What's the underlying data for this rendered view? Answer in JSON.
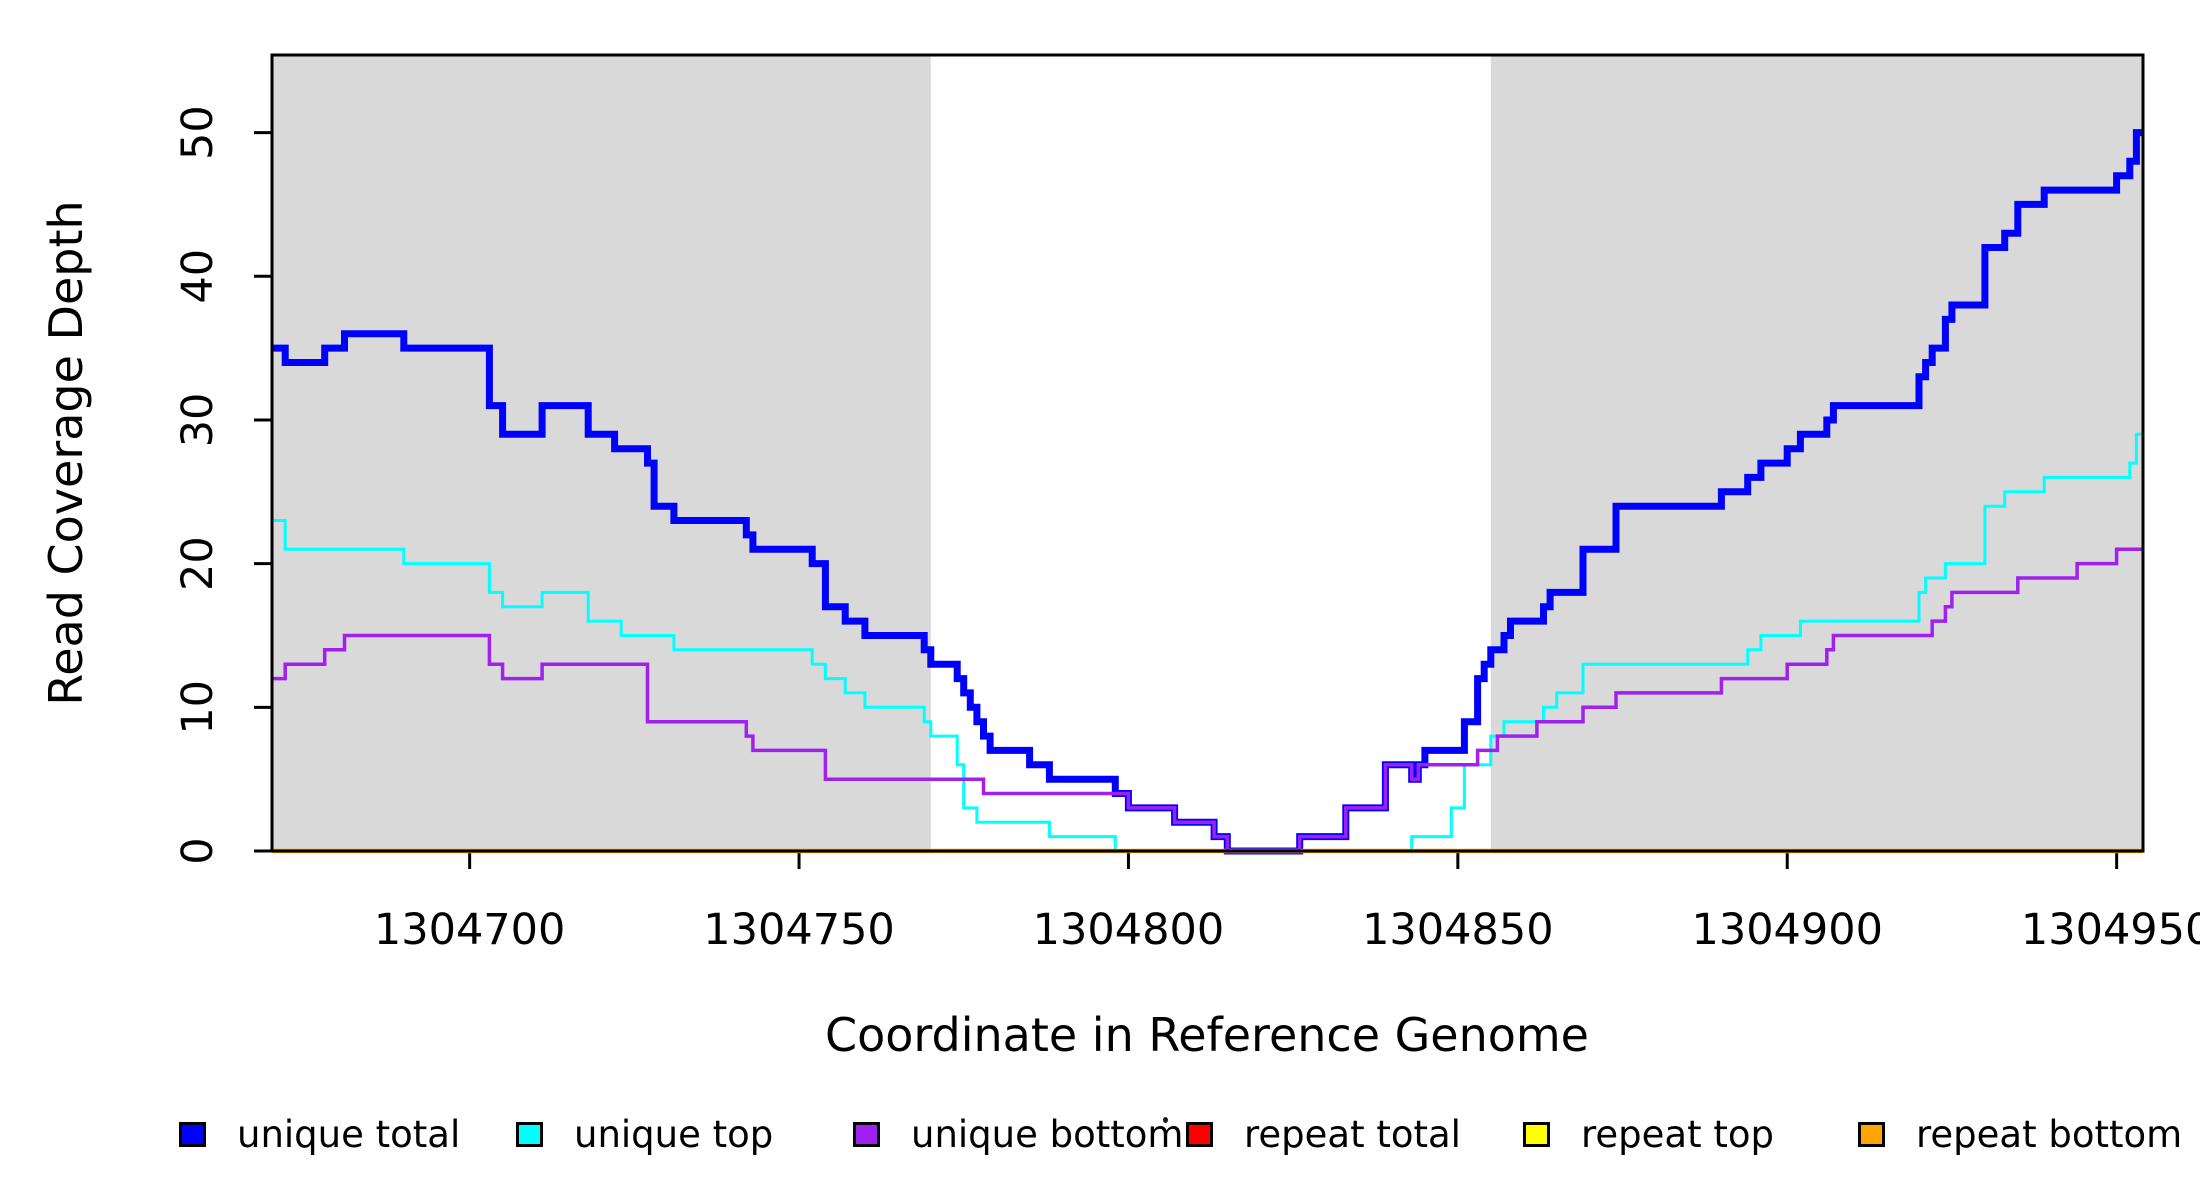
{
  "figure": {
    "background": "#FFFFFF",
    "xlabel": "Coordinate in Reference Genome",
    "ylabel": "Read Coverage Depth"
  },
  "chart_data": {
    "type": "line",
    "subtype": "step",
    "title": "",
    "xlabel": "Coordinate in Reference Genome",
    "ylabel": "Read Coverage Depth",
    "xlim": [
      1304670,
      1304954
    ],
    "ylim": [
      0,
      55.4
    ],
    "x_ticks": [
      1304700,
      1304750,
      1304800,
      1304850,
      1304900,
      1304950
    ],
    "y_ticks": [
      0,
      10,
      20,
      30,
      40,
      50
    ],
    "grid": false,
    "legend_position": "bottom",
    "shade_color": "#D9D9D9",
    "shaded_x_regions": [
      {
        "from": 1304670,
        "to": 1304770
      },
      {
        "from": 1304855,
        "to": 1304954
      }
    ],
    "series": [
      {
        "name": "repeat total",
        "color": "#FF0000",
        "width": 3,
        "points": [
          [
            1304670,
            0
          ]
        ]
      },
      {
        "name": "repeat top",
        "color": "#FFFF00",
        "width": 3,
        "points": [
          [
            1304670,
            0
          ]
        ]
      },
      {
        "name": "unique total",
        "color": "#0000FF",
        "width": 7,
        "points": [
          [
            1304670,
            35
          ],
          [
            1304672,
            34
          ],
          [
            1304678,
            35
          ],
          [
            1304681,
            36
          ],
          [
            1304690,
            35
          ],
          [
            1304703,
            31
          ],
          [
            1304705,
            29
          ],
          [
            1304711,
            31
          ],
          [
            1304718,
            29
          ],
          [
            1304722,
            28
          ],
          [
            1304727,
            27
          ],
          [
            1304728,
            24
          ],
          [
            1304731,
            23
          ],
          [
            1304742,
            22
          ],
          [
            1304743,
            21
          ],
          [
            1304752,
            20
          ],
          [
            1304754,
            17
          ],
          [
            1304757,
            16
          ],
          [
            1304760,
            15
          ],
          [
            1304769,
            14
          ],
          [
            1304770,
            13
          ],
          [
            1304774,
            12
          ],
          [
            1304775,
            11
          ],
          [
            1304776,
            10
          ],
          [
            1304777,
            9
          ],
          [
            1304778,
            8
          ],
          [
            1304779,
            7
          ],
          [
            1304785,
            6
          ],
          [
            1304788,
            5
          ],
          [
            1304798,
            4
          ],
          [
            1304800,
            3
          ],
          [
            1304807,
            2
          ],
          [
            1304813,
            1
          ],
          [
            1304815,
            0
          ],
          [
            1304826,
            1
          ],
          [
            1304833,
            3
          ],
          [
            1304839,
            6
          ],
          [
            1304843,
            5
          ],
          [
            1304844,
            6
          ],
          [
            1304845,
            7
          ],
          [
            1304851,
            9
          ],
          [
            1304853,
            12
          ],
          [
            1304854,
            13
          ],
          [
            1304855,
            14
          ],
          [
            1304857,
            15
          ],
          [
            1304858,
            16
          ],
          [
            1304863,
            17
          ],
          [
            1304864,
            18
          ],
          [
            1304869,
            21
          ],
          [
            1304874,
            24
          ],
          [
            1304890,
            25
          ],
          [
            1304894,
            26
          ],
          [
            1304896,
            27
          ],
          [
            1304900,
            28
          ],
          [
            1304902,
            29
          ],
          [
            1304906,
            30
          ],
          [
            1304907,
            31
          ],
          [
            1304920,
            33
          ],
          [
            1304921,
            34
          ],
          [
            1304922,
            35
          ],
          [
            1304924,
            37
          ],
          [
            1304925,
            38
          ],
          [
            1304930,
            42
          ],
          [
            1304933,
            43
          ],
          [
            1304935,
            45
          ],
          [
            1304939,
            46
          ],
          [
            1304950,
            47
          ],
          [
            1304952,
            48
          ],
          [
            1304953,
            50
          ]
        ]
      },
      {
        "name": "unique top",
        "color": "#00FFFF",
        "width": 3,
        "points": [
          [
            1304670,
            23
          ],
          [
            1304672,
            21
          ],
          [
            1304690,
            20
          ],
          [
            1304703,
            18
          ],
          [
            1304705,
            17
          ],
          [
            1304711,
            18
          ],
          [
            1304718,
            16
          ],
          [
            1304723,
            15
          ],
          [
            1304731,
            14
          ],
          [
            1304752,
            13
          ],
          [
            1304754,
            12
          ],
          [
            1304757,
            11
          ],
          [
            1304760,
            10
          ],
          [
            1304769,
            9
          ],
          [
            1304770,
            8
          ],
          [
            1304774,
            6
          ],
          [
            1304775,
            3
          ],
          [
            1304777,
            2
          ],
          [
            1304788,
            1
          ],
          [
            1304798,
            0
          ],
          [
            1304843,
            1
          ],
          [
            1304849,
            3
          ],
          [
            1304851,
            6
          ],
          [
            1304855,
            8
          ],
          [
            1304857,
            9
          ],
          [
            1304863,
            10
          ],
          [
            1304865,
            11
          ],
          [
            1304869,
            13
          ],
          [
            1304894,
            14
          ],
          [
            1304896,
            15
          ],
          [
            1304902,
            16
          ],
          [
            1304920,
            18
          ],
          [
            1304921,
            19
          ],
          [
            1304924,
            20
          ],
          [
            1304930,
            24
          ],
          [
            1304933,
            25
          ],
          [
            1304939,
            26
          ],
          [
            1304952,
            27
          ],
          [
            1304953,
            29
          ]
        ]
      },
      {
        "name": "repeat bottom",
        "color": "#FFA500",
        "width": 4.5,
        "points": [
          [
            1304670,
            0
          ]
        ]
      },
      {
        "name": "unique bottom",
        "color": "#A020F0",
        "width": 3.5,
        "points": [
          [
            1304670,
            12
          ],
          [
            1304672,
            13
          ],
          [
            1304678,
            14
          ],
          [
            1304681,
            15
          ],
          [
            1304703,
            13
          ],
          [
            1304705,
            12
          ],
          [
            1304711,
            13
          ],
          [
            1304727,
            9
          ],
          [
            1304742,
            8
          ],
          [
            1304743,
            7
          ],
          [
            1304754,
            5
          ],
          [
            1304778,
            4
          ],
          [
            1304800,
            3
          ],
          [
            1304807,
            2
          ],
          [
            1304813,
            1
          ],
          [
            1304815,
            0
          ],
          [
            1304826,
            1
          ],
          [
            1304833,
            3
          ],
          [
            1304839,
            6
          ],
          [
            1304843,
            5
          ],
          [
            1304844,
            6
          ],
          [
            1304853,
            7
          ],
          [
            1304856,
            8
          ],
          [
            1304862,
            9
          ],
          [
            1304869,
            10
          ],
          [
            1304874,
            11
          ],
          [
            1304890,
            12
          ],
          [
            1304900,
            13
          ],
          [
            1304906,
            14
          ],
          [
            1304907,
            15
          ],
          [
            1304922,
            16
          ],
          [
            1304924,
            17
          ],
          [
            1304925,
            18
          ],
          [
            1304935,
            19
          ],
          [
            1304944,
            20
          ],
          [
            1304950,
            21
          ]
        ]
      }
    ],
    "legend": [
      {
        "label": "unique total",
        "color": "#0000FF"
      },
      {
        "label": "unique top",
        "color": "#00FFFF"
      },
      {
        "label": "unique bottom",
        "color": "#A020F0"
      },
      {
        "label": "repeat total",
        "color": "#FF0000"
      },
      {
        "label": "repeat top",
        "color": "#FFFF00"
      },
      {
        "label": "repeat bottom",
        "color": "#FFA500"
      }
    ]
  }
}
